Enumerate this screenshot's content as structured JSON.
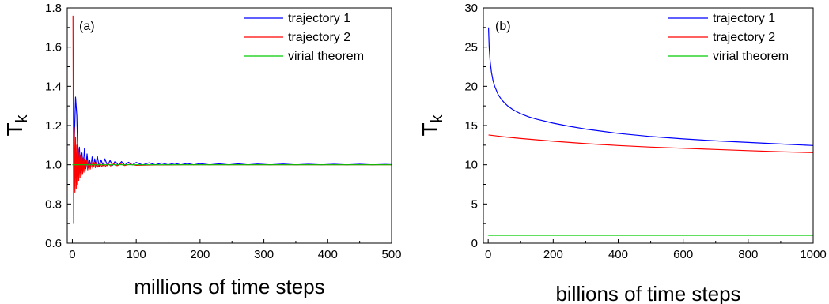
{
  "chart_data": [
    {
      "type": "line",
      "panel_label": "(a)",
      "xlabel": "millions of time steps",
      "ylabel": "T",
      "ylabel_sub": "k",
      "xlim": [
        -8,
        500
      ],
      "ylim": [
        0.6,
        1.8
      ],
      "xticks": [
        0,
        100,
        200,
        300,
        400,
        500
      ],
      "xtick_labels": [
        "0",
        "100",
        "200",
        "300",
        "400",
        "500"
      ],
      "yticks": [
        0.6,
        0.8,
        1.0,
        1.2,
        1.4,
        1.6,
        1.8
      ],
      "ytick_labels": [
        "0.6",
        "0.8",
        "1.0",
        "1.2",
        "1.4",
        "1.6",
        "1.8"
      ],
      "legend_position": "top-right",
      "grid": false,
      "series": [
        {
          "name": "trajectory 1",
          "color": "#0000ff",
          "x": [
            2,
            5,
            7,
            9,
            11,
            13,
            15,
            17,
            19,
            21,
            23,
            25,
            27,
            29,
            31,
            33,
            35,
            37,
            39,
            42,
            45,
            48,
            51,
            55,
            59,
            63,
            67,
            72,
            77,
            82,
            88,
            94,
            100,
            110,
            120,
            130,
            140,
            150,
            160,
            170,
            180,
            190,
            200,
            215,
            230,
            245,
            260,
            275,
            290,
            310,
            330,
            350,
            370,
            390,
            410,
            430,
            450,
            470,
            490,
            500
          ],
          "y": [
            1.0,
            1.345,
            1.25,
            0.98,
            1.09,
            0.96,
            1.06,
            0.985,
            1.085,
            0.98,
            1.055,
            0.985,
            1.025,
            0.99,
            1.04,
            0.99,
            1.03,
            0.995,
            1.045,
            0.99,
            1.025,
            0.995,
            1.03,
            0.995,
            1.022,
            0.997,
            1.018,
            0.998,
            1.016,
            0.998,
            1.013,
            0.999,
            1.012,
            0.999,
            1.01,
            1.0,
            1.009,
            1.0,
            1.008,
            1.0,
            1.007,
            1.0,
            1.006,
            1.0,
            1.005,
            1.0,
            1.005,
            1.0,
            1.004,
            1.0,
            1.004,
            1.0,
            1.003,
            1.0,
            1.003,
            1.0,
            1.003,
            1.0,
            1.002,
            1.001
          ]
        },
        {
          "name": "trajectory 2",
          "color": "#ff0000",
          "x": [
            1,
            2,
            3,
            4,
            5,
            6,
            7,
            8,
            9,
            10,
            11,
            12,
            13,
            14,
            15,
            16,
            17,
            18,
            19,
            20,
            22,
            24,
            26,
            28,
            30,
            32,
            34,
            36,
            38,
            40,
            43,
            46,
            49,
            52,
            56,
            60,
            65,
            70,
            76,
            82,
            90,
            100,
            115,
            130,
            150,
            175,
            200,
            250,
            300,
            350,
            400,
            450,
            500
          ],
          "y": [
            1.76,
            0.7,
            1.19,
            0.86,
            1.14,
            0.88,
            1.1,
            0.9,
            1.08,
            0.92,
            1.06,
            0.935,
            1.05,
            0.945,
            1.04,
            0.955,
            1.035,
            0.962,
            1.03,
            0.968,
            1.025,
            0.974,
            1.02,
            0.978,
            1.017,
            0.982,
            1.014,
            0.985,
            1.012,
            0.988,
            1.01,
            0.99,
            1.008,
            0.992,
            1.006,
            0.994,
            1.005,
            0.995,
            1.004,
            0.996,
            1.003,
            0.997,
            0.998,
            0.999,
            0.999,
            1.0,
            1.0,
            1.0,
            1.0,
            1.0,
            1.0,
            1.0,
            1.0
          ]
        },
        {
          "name": "virial theorem",
          "color": "#00cc00",
          "x": [
            0,
            500
          ],
          "y": [
            1.0,
            1.0
          ]
        }
      ]
    },
    {
      "type": "line",
      "panel_label": "(b)",
      "xlabel": "billions of time steps",
      "ylabel": "T",
      "ylabel_sub": "k",
      "xlim": [
        -15,
        1000
      ],
      "ylim": [
        0,
        30
      ],
      "xticks": [
        0,
        200,
        400,
        600,
        800,
        1000
      ],
      "xtick_labels": [
        "0",
        "200",
        "400",
        "600",
        "800",
        "1000"
      ],
      "yticks": [
        0,
        5,
        10,
        15,
        20,
        25,
        30
      ],
      "ytick_labels": [
        "0",
        "5",
        "10",
        "15",
        "20",
        "25",
        "30"
      ],
      "legend_position": "top-right",
      "grid": false,
      "series": [
        {
          "name": "trajectory 1",
          "color": "#0000ff",
          "x": [
            1,
            3,
            6,
            10,
            15,
            20,
            30,
            40,
            50,
            60,
            75,
            100,
            125,
            150,
            200,
            250,
            300,
            400,
            500,
            600,
            700,
            800,
            900,
            1000
          ],
          "y": [
            27.5,
            25.0,
            23.2,
            21.8,
            20.7,
            20.0,
            19.0,
            18.35,
            17.9,
            17.5,
            17.05,
            16.5,
            16.1,
            15.8,
            15.3,
            14.9,
            14.55,
            14.0,
            13.6,
            13.3,
            13.05,
            12.85,
            12.65,
            12.45
          ]
        },
        {
          "name": "trajectory 2",
          "color": "#ff0000",
          "x": [
            1,
            50,
            100,
            200,
            300,
            400,
            500,
            600,
            700,
            800,
            900,
            1000
          ],
          "y": [
            13.8,
            13.55,
            13.35,
            13.0,
            12.7,
            12.45,
            12.25,
            12.1,
            11.95,
            11.8,
            11.65,
            11.55
          ]
        },
        {
          "name": "virial theorem",
          "color": "#00cc00",
          "x": [
            0,
            1000
          ],
          "y": [
            1.0,
            1.0
          ]
        }
      ]
    }
  ]
}
